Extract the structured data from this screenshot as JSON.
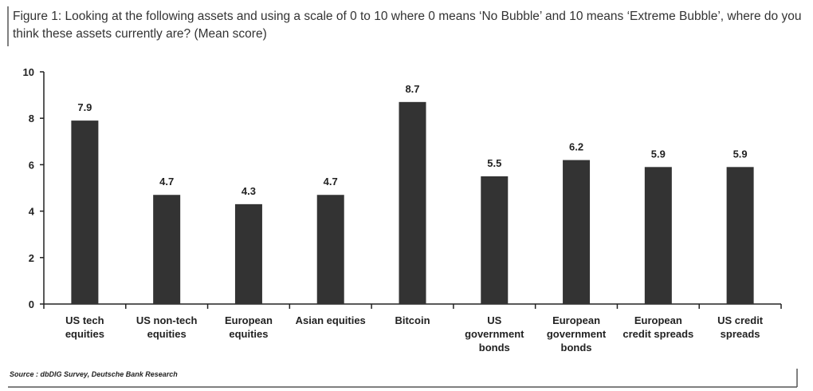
{
  "chart_data": {
    "type": "bar",
    "title": "Figure 1: Looking at the following assets and using a scale of 0 to 10 where 0 means ‘No Bubble’ and 10 means ‘Extreme Bubble’, where do you think these assets currently are? (Mean score)",
    "categories": [
      "US tech\nequities",
      "US non-tech\nequities",
      "European\nequities",
      "Asian equities",
      "Bitcoin",
      "US\ngovernment\nbonds",
      "European\ngovernment\nbonds",
      "European\ncredit spreads",
      "US credit\nspreads"
    ],
    "values": [
      7.9,
      4.7,
      4.3,
      4.7,
      8.7,
      5.5,
      6.2,
      5.9,
      5.9
    ],
    "color": "#333333",
    "ylim": [
      0,
      10
    ],
    "yticks": [
      0,
      2,
      4,
      6,
      8,
      10
    ],
    "source": "Source : dbDIG Survey, Deutsche Bank Research"
  }
}
